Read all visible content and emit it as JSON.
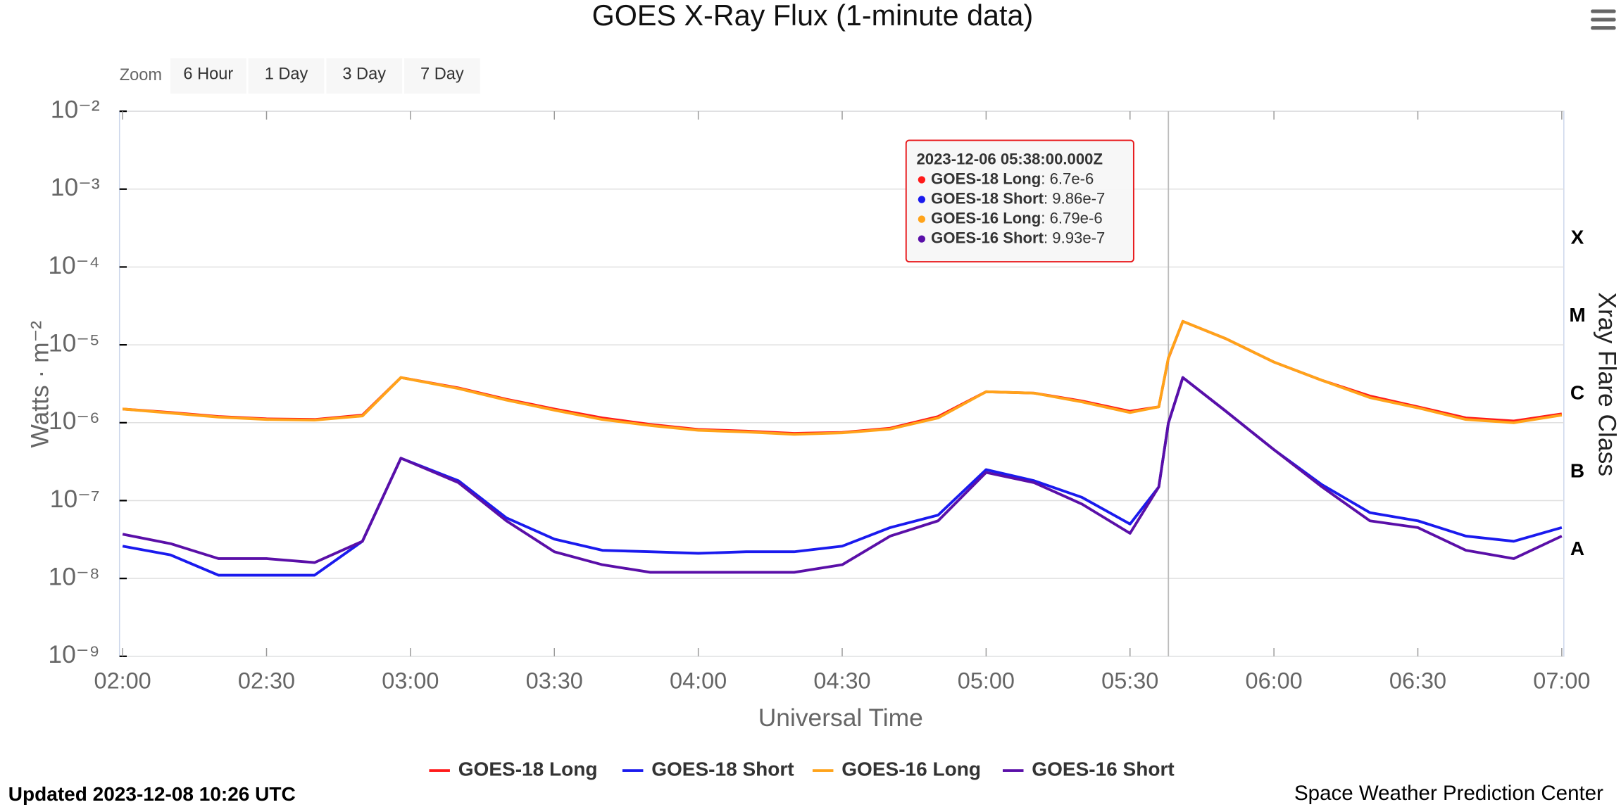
{
  "chart_data": {
    "type": "line",
    "title": "GOES X-Ray Flux (1-minute data)",
    "zoom_label": "Zoom",
    "zoom_buttons": [
      "6 Hour",
      "1 Day",
      "3 Day",
      "7 Day"
    ],
    "xlabel": "Universal Time",
    "ylabel": "Watts · m⁻²",
    "y2label": "Xray Flare Class",
    "log_y": true,
    "grid": true,
    "legend": "bottom",
    "x": [
      "02:00",
      "02:10",
      "02:20",
      "02:30",
      "02:40",
      "02:50",
      "02:58",
      "03:10",
      "03:20",
      "03:30",
      "03:40",
      "03:50",
      "04:00",
      "04:10",
      "04:20",
      "04:30",
      "04:40",
      "04:50",
      "05:00",
      "05:10",
      "05:20",
      "05:30",
      "05:36",
      "05:38",
      "05:41",
      "05:50",
      "06:00",
      "06:10",
      "06:20",
      "06:30",
      "06:40",
      "06:50",
      "07:00"
    ],
    "xlim": [
      "02:00",
      "07:00"
    ],
    "xticks": [
      "02:00",
      "02:30",
      "03:00",
      "03:30",
      "04:00",
      "04:30",
      "05:00",
      "05:30",
      "06:00",
      "06:30",
      "07:00"
    ],
    "ylim": [
      1e-09,
      0.01
    ],
    "yticks": [
      {
        "value": 1e-09,
        "label": "10⁻⁹"
      },
      {
        "value": 1e-08,
        "label": "10⁻⁸"
      },
      {
        "value": 1e-07,
        "label": "10⁻⁷"
      },
      {
        "value": 1e-06,
        "label": "10⁻⁶"
      },
      {
        "value": 1e-05,
        "label": "10⁻⁵"
      },
      {
        "value": 0.0001,
        "label": "10⁻⁴"
      },
      {
        "value": 0.001,
        "label": "10⁻³"
      },
      {
        "value": 0.01,
        "label": "10⁻²"
      }
    ],
    "flare_classes": [
      {
        "label": "X",
        "from": 0.0001,
        "to": 0.001
      },
      {
        "label": "M",
        "from": 1e-05,
        "to": 0.0001
      },
      {
        "label": "C",
        "from": 1e-06,
        "to": 1e-05
      },
      {
        "label": "B",
        "from": 1e-07,
        "to": 1e-06
      },
      {
        "label": "A",
        "from": 1e-08,
        "to": 1e-07
      }
    ],
    "series": [
      {
        "name": "GOES-18 Long",
        "color": "#ff1a1a",
        "values": [
          1.5e-06,
          1.35e-06,
          1.2e-06,
          1.12e-06,
          1.1e-06,
          1.25e-06,
          3.8e-06,
          2.8e-06,
          2e-06,
          1.5e-06,
          1.15e-06,
          9.5e-07,
          8.2e-07,
          7.8e-07,
          7.3e-07,
          7.5e-07,
          8.5e-07,
          1.2e-06,
          2.5e-06,
          2.4e-06,
          1.9e-06,
          1.4e-06,
          1.6e-06,
          6.7e-06,
          2e-05,
          1.2e-05,
          6e-06,
          3.5e-06,
          2.2e-06,
          1.6e-06,
          1.15e-06,
          1.05e-06,
          1.3e-06
        ]
      },
      {
        "name": "GOES-18 Short",
        "color": "#1a1aee",
        "values": [
          2.6e-08,
          2e-08,
          1.1e-08,
          1.1e-08,
          1.1e-08,
          3e-08,
          3.5e-07,
          1.8e-07,
          6e-08,
          3.2e-08,
          2.3e-08,
          2.2e-08,
          2.1e-08,
          2.2e-08,
          2.2e-08,
          2.6e-08,
          4.5e-08,
          6.5e-08,
          2.5e-07,
          1.8e-07,
          1.1e-07,
          5e-08,
          1.5e-07,
          9.86e-07,
          3.8e-06,
          1.4e-06,
          4.5e-07,
          1.6e-07,
          7e-08,
          5.5e-08,
          3.5e-08,
          3e-08,
          4.5e-08
        ]
      },
      {
        "name": "GOES-16 Long",
        "color": "#ffa31a",
        "values": [
          1.5e-06,
          1.33e-06,
          1.18e-06,
          1.1e-06,
          1.08e-06,
          1.22e-06,
          3.8e-06,
          2.75e-06,
          1.95e-06,
          1.45e-06,
          1.1e-06,
          9.2e-07,
          8e-07,
          7.6e-07,
          7.1e-07,
          7.4e-07,
          8.3e-07,
          1.15e-06,
          2.5e-06,
          2.4e-06,
          1.85e-06,
          1.35e-06,
          1.6e-06,
          6.79e-06,
          2e-05,
          1.2e-05,
          6e-06,
          3.5e-06,
          2.1e-06,
          1.55e-06,
          1.1e-06,
          1e-06,
          1.25e-06
        ]
      },
      {
        "name": "GOES-16 Short",
        "color": "#5a0fa8",
        "values": [
          3.7e-08,
          2.8e-08,
          1.8e-08,
          1.8e-08,
          1.6e-08,
          3e-08,
          3.5e-07,
          1.7e-07,
          5.5e-08,
          2.2e-08,
          1.5e-08,
          1.2e-08,
          1.2e-08,
          1.2e-08,
          1.2e-08,
          1.5e-08,
          3.5e-08,
          5.5e-08,
          2.3e-07,
          1.7e-07,
          9e-08,
          3.8e-08,
          1.5e-07,
          9.93e-07,
          3.8e-06,
          1.4e-06,
          4.5e-07,
          1.5e-07,
          5.5e-08,
          4.5e-08,
          2.3e-08,
          1.8e-08,
          3.5e-08
        ]
      }
    ],
    "tooltip": {
      "index": 23,
      "title": "2023-12-06 05:38:00.000Z",
      "value_labels": [
        "6.7e-6",
        "9.86e-7",
        "6.79e-6",
        "9.93e-7"
      ]
    },
    "updated": "Updated 2023-12-08 10:26 UTC",
    "credit": "Space Weather Prediction Center"
  }
}
